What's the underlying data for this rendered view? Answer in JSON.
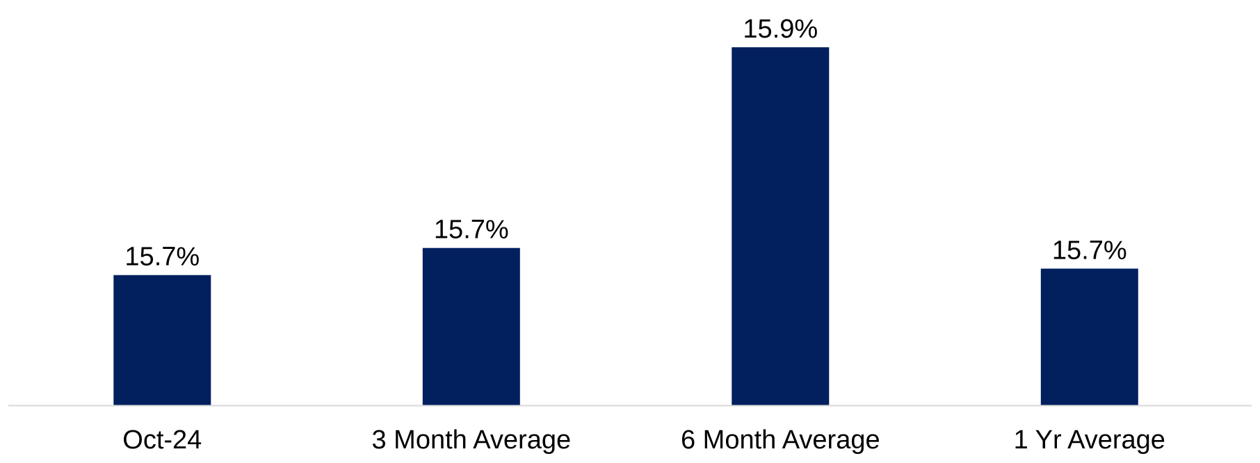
{
  "chart_data": {
    "type": "bar",
    "title": "",
    "xlabel": "",
    "ylabel": "",
    "categories": [
      "Oct-24",
      "3 Month Average",
      "6 Month Average",
      "1 Yr Average"
    ],
    "values": [
      15.72,
      15.745,
      15.93,
      15.726
    ],
    "data_labels": [
      "15.7%",
      "15.7%",
      "15.9%",
      "15.7%"
    ],
    "ylim": [
      15.6,
      15.95
    ],
    "grid": false,
    "legend": "none",
    "colors": {
      "bar": "#021F5E",
      "axis": "#D9D9D9",
      "text": "#000000"
    }
  }
}
